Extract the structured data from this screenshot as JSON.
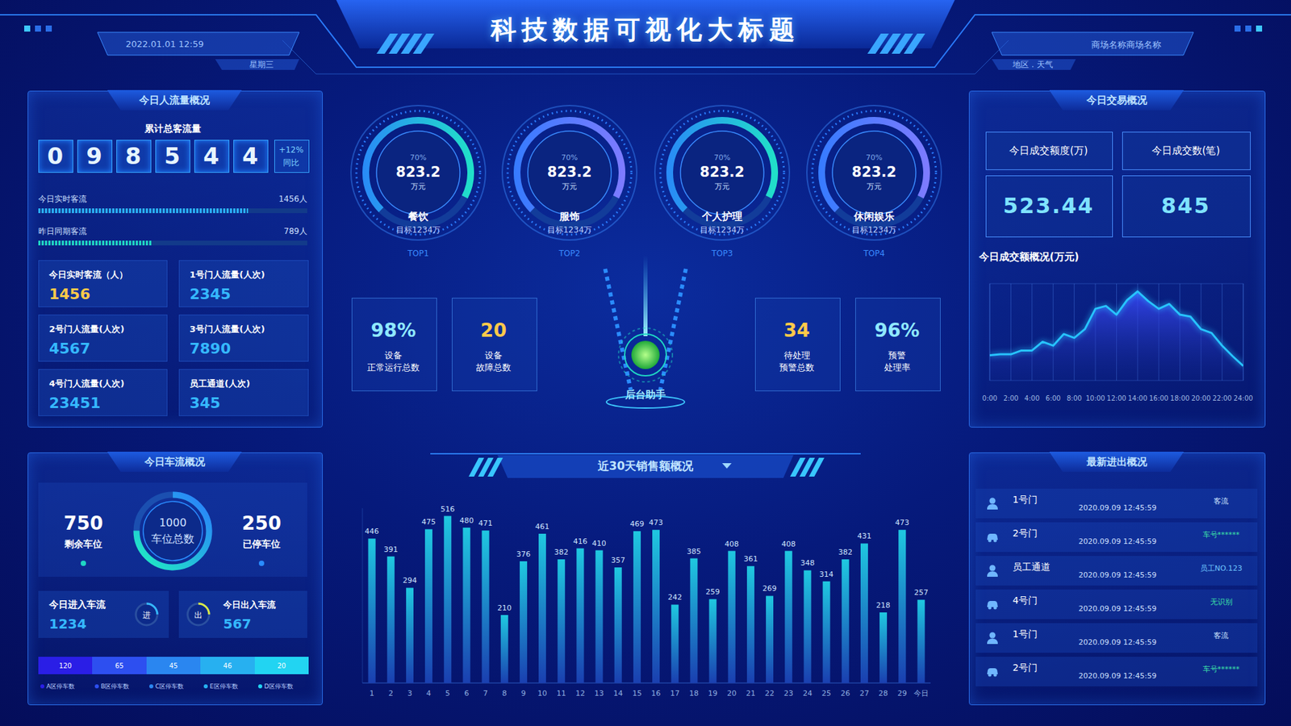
{
  "header": {
    "title": "科技数据可视化大标题",
    "datetime": "2022.01.01 12:59",
    "weekday": "星期三",
    "mall": "商场名称商场名称",
    "region": "地区 . 天气"
  },
  "people_flow": {
    "title": "今日人流量概况",
    "total_label": "累计总客流量",
    "total_digits": "098544",
    "yoy": "+12%",
    "yoy_label": "同比",
    "bars": [
      {
        "label": "今日实时客流",
        "value": 1456,
        "value_label": "1456人"
      },
      {
        "label": "昨日同期客流",
        "value": 789,
        "value_label": "789人"
      }
    ],
    "cells": [
      {
        "label": "今日实时客流（人）",
        "value": "1456"
      },
      {
        "label": "1号门人流量(人次)",
        "value": "2345"
      },
      {
        "label": "2号门人流量(人次)",
        "value": "4567"
      },
      {
        "label": "3号门人流量(人次)",
        "value": "7890"
      },
      {
        "label": "4号门人流量(人次)",
        "value": "23451"
      },
      {
        "label": "员工通道(人次)",
        "value": "345"
      }
    ]
  },
  "car_flow": {
    "title": "今日车流概况",
    "remaining": 750,
    "remaining_label": "剩余车位",
    "total": 1000,
    "total_label": "车位总数",
    "parked": 250,
    "parked_label": "已停车位",
    "in_label": "今日进入车流",
    "in_value": "1234",
    "in_icon": "进",
    "out_label": "今日出入车流",
    "out_value": "567",
    "out_icon": "出",
    "zones": [
      {
        "name": "A区停车数",
        "value": 120
      },
      {
        "name": "B区停车数",
        "value": 65
      },
      {
        "name": "C区停车数",
        "value": 45
      },
      {
        "name": "E区停车数",
        "value": 46
      },
      {
        "name": "D区停车数",
        "value": 20
      }
    ]
  },
  "gauges": [
    {
      "name": "餐饮",
      "percent": 70,
      "percent_label": "70%",
      "value": 823.2,
      "unit": "万元",
      "target": "目标1234万",
      "rank": "TOP1"
    },
    {
      "name": "服饰",
      "percent": 70,
      "percent_label": "70%",
      "value": 823.2,
      "unit": "万元",
      "target": "目标1234万",
      "rank": "TOP2"
    },
    {
      "name": "个人护理",
      "percent": 70,
      "percent_label": "70%",
      "value": 823.2,
      "unit": "万元",
      "target": "目标1234万",
      "rank": "TOP3"
    },
    {
      "name": "休闲娱乐",
      "percent": 70,
      "percent_label": "70%",
      "value": 823.2,
      "unit": "万元",
      "target": "目标1234万",
      "rank": "TOP4"
    }
  ],
  "stats": [
    {
      "value": "98%",
      "label1": "设备",
      "label2": "正常运行总数"
    },
    {
      "value": "20",
      "label1": "设备",
      "label2": "故障总数"
    },
    {
      "value": "34",
      "label1": "待处理",
      "label2": "预警总数"
    },
    {
      "value": "96%",
      "label1": "预警",
      "label2": "处理率"
    }
  ],
  "assistant": "后台助手",
  "trade": {
    "title": "今日交易概况",
    "amount_label": "今日成交额度(万)",
    "amount": "523.44",
    "count_label": "今日成交数(笔)",
    "count": "845"
  },
  "access": {
    "title": "最新进出概况",
    "rows": [
      [
        "1号门",
        "2020.09.09 12:45:59",
        "客流"
      ],
      [
        "2号门",
        "2020.09.09 12:45:59",
        "车号******"
      ],
      [
        "员工通道",
        "2020.09.09 12:45:59",
        "员工NO.123"
      ],
      [
        "4号门",
        "2020.09.09 12:45:59",
        "无识别"
      ],
      [
        "1号门",
        "2020.09.09 12:45:59",
        "客流"
      ],
      [
        "2号门",
        "2020.09.09 12:45:59",
        "车号******"
      ]
    ]
  },
  "chart_data": [
    {
      "type": "bar",
      "title": "近30天销售额概况",
      "categories": [
        "1",
        "2",
        "3",
        "4",
        "5",
        "6",
        "7",
        "8",
        "9",
        "10",
        "11",
        "12",
        "13",
        "14",
        "15",
        "16",
        "17",
        "18",
        "19",
        "20",
        "21",
        "22",
        "23",
        "24",
        "25",
        "26",
        "27",
        "28",
        "29",
        "今日"
      ],
      "values": [
        446,
        391,
        294,
        475,
        516,
        480,
        471,
        210,
        376,
        461,
        382,
        416,
        410,
        357,
        469,
        473,
        242,
        385,
        259,
        408,
        361,
        269,
        408,
        348,
        314,
        382,
        431,
        218,
        473,
        257
      ],
      "color": "#1fc8e0",
      "ylim": [
        0,
        540
      ],
      "data_labels": true,
      "tick_labels": "x"
    },
    {
      "type": "line",
      "title": "今日成交额概况(万元)",
      "x": [
        0,
        1,
        2,
        3,
        4,
        5,
        6,
        7,
        8,
        9,
        10,
        11,
        12,
        13,
        14,
        15,
        16,
        17,
        18,
        19,
        20,
        21,
        22,
        23,
        24
      ],
      "values": [
        26,
        27,
        27,
        31,
        31,
        40,
        36,
        48,
        44,
        53,
        74,
        77,
        68,
        83,
        92,
        82,
        74,
        79,
        68,
        66,
        53,
        49,
        36,
        25,
        15
      ],
      "color": "#27c4ff",
      "xlim": [
        0,
        24
      ],
      "ylim": [
        0,
        100
      ],
      "xticks": [
        {
          "value": 0,
          "label": "0:00"
        },
        {
          "value": 2,
          "label": "2:00"
        },
        {
          "value": 4,
          "label": "4:00"
        },
        {
          "value": 6,
          "label": "6:00"
        },
        {
          "value": 8,
          "label": "8:00"
        },
        {
          "value": 10,
          "label": "10:00"
        },
        {
          "value": 12,
          "label": "12:00"
        },
        {
          "value": 14,
          "label": "14:00"
        },
        {
          "value": 16,
          "label": "16:00"
        },
        {
          "value": 18,
          "label": "18:00"
        },
        {
          "value": 20,
          "label": "20:00"
        },
        {
          "value": 22,
          "label": "22:00"
        },
        {
          "value": 24,
          "label": "24:00"
        }
      ],
      "grid": true,
      "tick_labels": "x"
    }
  ]
}
